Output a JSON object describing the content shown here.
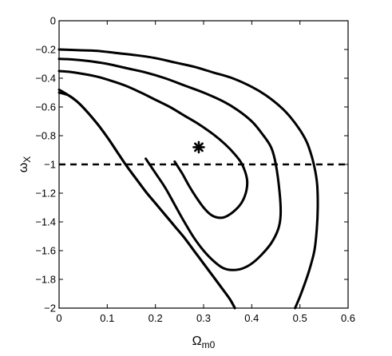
{
  "chart_data": {
    "type": "line",
    "title": "",
    "xlabel": "Ω",
    "xlabel_sub": "m0",
    "ylabel": "ω",
    "ylabel_sub": "X",
    "xlim": [
      0,
      0.6
    ],
    "ylim": [
      -2,
      0
    ],
    "xticks": [
      0,
      0.1,
      0.2,
      0.3,
      0.4,
      0.5,
      0.6
    ],
    "yticks": [
      0,
      -0.2,
      -0.4,
      -0.6,
      -0.8,
      -1,
      -1.2,
      -1.4,
      -1.6,
      -1.8,
      -2
    ],
    "xtick_labels": [
      "0",
      "0.1",
      "0.2",
      "0.3",
      "0.4",
      "0.5",
      "0.6"
    ],
    "ytick_labels": [
      "0",
      "−0.2",
      "−0.4",
      "−0.6",
      "−0.8",
      "−1",
      "−1.2",
      "−1.4",
      "−1.6",
      "−1.8",
      "−2"
    ],
    "grid": false,
    "legend": "none",
    "line_color": "#000000",
    "series": [
      {
        "x": [
          0,
          0.02,
          0.05,
          0.08,
          0.11,
          0.14,
          0.17,
          0.2,
          0.23,
          0.26,
          0.29,
          0.32,
          0.345,
          0.365,
          0.38,
          0.39,
          0.389,
          0.38,
          0.365,
          0.345,
          0.33,
          0.315,
          0.3,
          0.285,
          0.27,
          0.255,
          0.24
        ],
        "y": [
          -0.35,
          -0.355,
          -0.37,
          -0.39,
          -0.42,
          -0.455,
          -0.5,
          -0.55,
          -0.6,
          -0.66,
          -0.72,
          -0.79,
          -0.86,
          -0.93,
          -1.0,
          -1.1,
          -1.18,
          -1.26,
          -1.32,
          -1.365,
          -1.37,
          -1.35,
          -1.3,
          -1.23,
          -1.15,
          -1.06,
          -0.98
        ]
      },
      {
        "x": [
          0,
          0.03,
          0.06,
          0.1,
          0.14,
          0.18,
          0.22,
          0.26,
          0.3,
          0.34,
          0.37,
          0.4,
          0.42,
          0.44,
          0.45,
          0.458,
          0.46,
          0.455,
          0.44,
          0.42,
          0.4,
          0.38,
          0.36,
          0.34,
          0.32,
          0.3,
          0.28,
          0.26,
          0.24,
          0.22,
          0.2,
          0.18
        ],
        "y": [
          -0.265,
          -0.27,
          -0.28,
          -0.3,
          -0.33,
          -0.36,
          -0.4,
          -0.45,
          -0.5,
          -0.56,
          -0.62,
          -0.7,
          -0.78,
          -0.88,
          -1.0,
          -1.2,
          -1.35,
          -1.45,
          -1.55,
          -1.63,
          -1.69,
          -1.725,
          -1.735,
          -1.72,
          -1.67,
          -1.6,
          -1.51,
          -1.4,
          -1.28,
          -1.16,
          -1.06,
          -0.96
        ]
      },
      {
        "x": [
          0,
          0.04,
          0.08,
          0.12,
          0.16,
          0.2,
          0.24,
          0.28,
          0.32,
          0.36,
          0.4,
          0.43,
          0.46,
          0.48,
          0.5,
          0.515,
          0.525,
          0.532,
          0.536,
          0.537,
          0.535,
          0.53,
          0.52,
          0.51,
          0.5,
          0.49
        ],
        "y": [
          -0.2,
          -0.205,
          -0.21,
          -0.225,
          -0.24,
          -0.26,
          -0.29,
          -0.32,
          -0.36,
          -0.4,
          -0.46,
          -0.52,
          -0.6,
          -0.67,
          -0.76,
          -0.85,
          -0.95,
          -1.05,
          -1.15,
          -1.3,
          -1.45,
          -1.6,
          -1.73,
          -1.83,
          -1.92,
          -2.0
        ]
      },
      {
        "x": [
          0,
          0.02,
          0.04,
          0.06,
          0.08,
          0.1,
          0.12,
          0.14,
          0.16,
          0.18,
          0.2,
          0.22,
          0.24,
          0.26,
          0.28,
          0.3,
          0.32,
          0.34,
          0.355,
          0.365
        ],
        "y": [
          -0.48,
          -0.52,
          -0.57,
          -0.64,
          -0.72,
          -0.81,
          -0.91,
          -1.01,
          -1.1,
          -1.19,
          -1.27,
          -1.35,
          -1.43,
          -1.51,
          -1.6,
          -1.69,
          -1.78,
          -1.87,
          -1.94,
          -2.0
        ]
      },
      {
        "x": [
          0,
          0.02,
          0.04,
          0.06,
          0.08,
          0.1,
          0.12,
          0.14,
          0.16,
          0.18,
          0.2,
          0.22,
          0.24,
          0.26,
          0.28,
          0.3,
          0.32,
          0.34,
          0.355,
          0.365
        ],
        "y": [
          -0.5,
          -0.52,
          -0.57,
          -0.64,
          -0.72,
          -0.81,
          -0.91,
          -1.01,
          -1.1,
          -1.19,
          -1.27,
          -1.35,
          -1.43,
          -1.51,
          -1.6,
          -1.69,
          -1.78,
          -1.87,
          -1.94,
          -2.0
        ]
      }
    ],
    "reference_line": {
      "y": -1,
      "style": "dashed"
    },
    "marker": {
      "x": 0.29,
      "y": -0.88,
      "symbol": "asterisk"
    }
  }
}
